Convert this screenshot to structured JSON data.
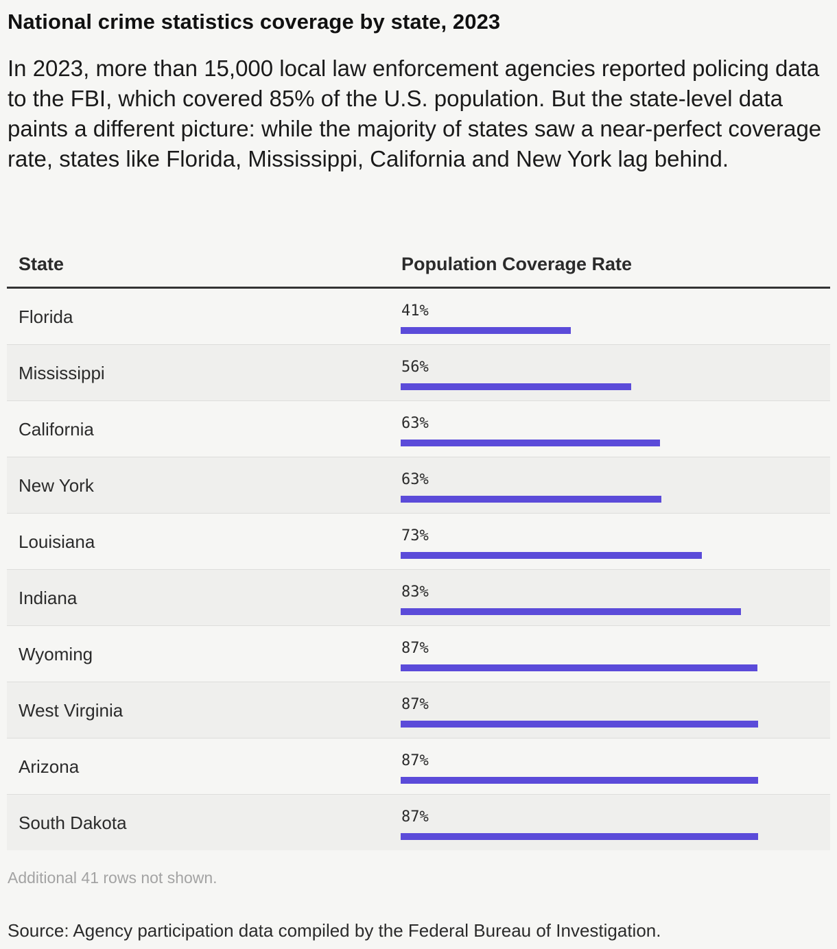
{
  "title": "National crime statistics coverage by state, 2023",
  "subtitle": "In 2023, more than 15,000 local law enforcement agencies reported policing data to the FBI, which covered 85% of the U.S. population. But the state-level data paints a different picture: while the majority of states saw a near-perfect coverage rate, states like Florida, Mississippi, California and New York lag behind.",
  "table": {
    "headers": {
      "state": "State",
      "rate": "Population Coverage Rate"
    }
  },
  "note": "Additional 41 rows not shown.",
  "source": "Source: Agency participation data compiled by the Federal Bureau of Investigation.",
  "colors": {
    "bar": "#5b4bd9"
  },
  "chart_data": {
    "type": "table",
    "columns": [
      "State",
      "Population Coverage Rate"
    ],
    "value_max": 100,
    "rows": [
      {
        "state": "Florida",
        "label": "41%",
        "value": 41.4
      },
      {
        "state": "Mississippi",
        "label": "56%",
        "value": 56.0
      },
      {
        "state": "California",
        "label": "63%",
        "value": 63.0
      },
      {
        "state": "New York",
        "label": "63%",
        "value": 63.3
      },
      {
        "state": "Louisiana",
        "label": "73%",
        "value": 73.1
      },
      {
        "state": "Indiana",
        "label": "83%",
        "value": 82.7
      },
      {
        "state": "Wyoming",
        "label": "87%",
        "value": 86.6
      },
      {
        "state": "West Virginia",
        "label": "87%",
        "value": 86.9
      },
      {
        "state": "Arizona",
        "label": "87%",
        "value": 86.9
      },
      {
        "state": "South Dakota",
        "label": "87%",
        "value": 86.9
      }
    ]
  }
}
